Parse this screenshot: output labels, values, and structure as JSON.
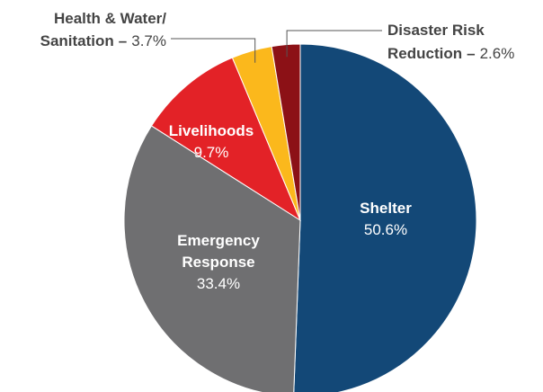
{
  "chart_data": {
    "type": "pie",
    "start_angle": "12 o'clock",
    "direction": "clockwise",
    "slices": [
      {
        "name": "Shelter",
        "value": 50.6,
        "label": "50.6%",
        "color": "#134877"
      },
      {
        "name": "Emergency Response",
        "name_lines": [
          "Emergency",
          "Response"
        ],
        "value": 33.4,
        "label": "33.4%",
        "color": "#6f6f71"
      },
      {
        "name": "Livelihoods",
        "value": 9.7,
        "label": "9.7%",
        "color": "#e32227"
      },
      {
        "name": "Health & Water/ Sanitation",
        "name_lines": [
          "Health & Water/",
          "Sanitation"
        ],
        "value": 3.7,
        "label": "3.7%",
        "color": "#fbb81c"
      },
      {
        "name": "Disaster Risk Reduction",
        "name_lines": [
          "Disaster Risk",
          "Reduction"
        ],
        "value": 2.6,
        "label": "2.6%",
        "color": "#8c1116"
      }
    ],
    "separator": "–"
  }
}
